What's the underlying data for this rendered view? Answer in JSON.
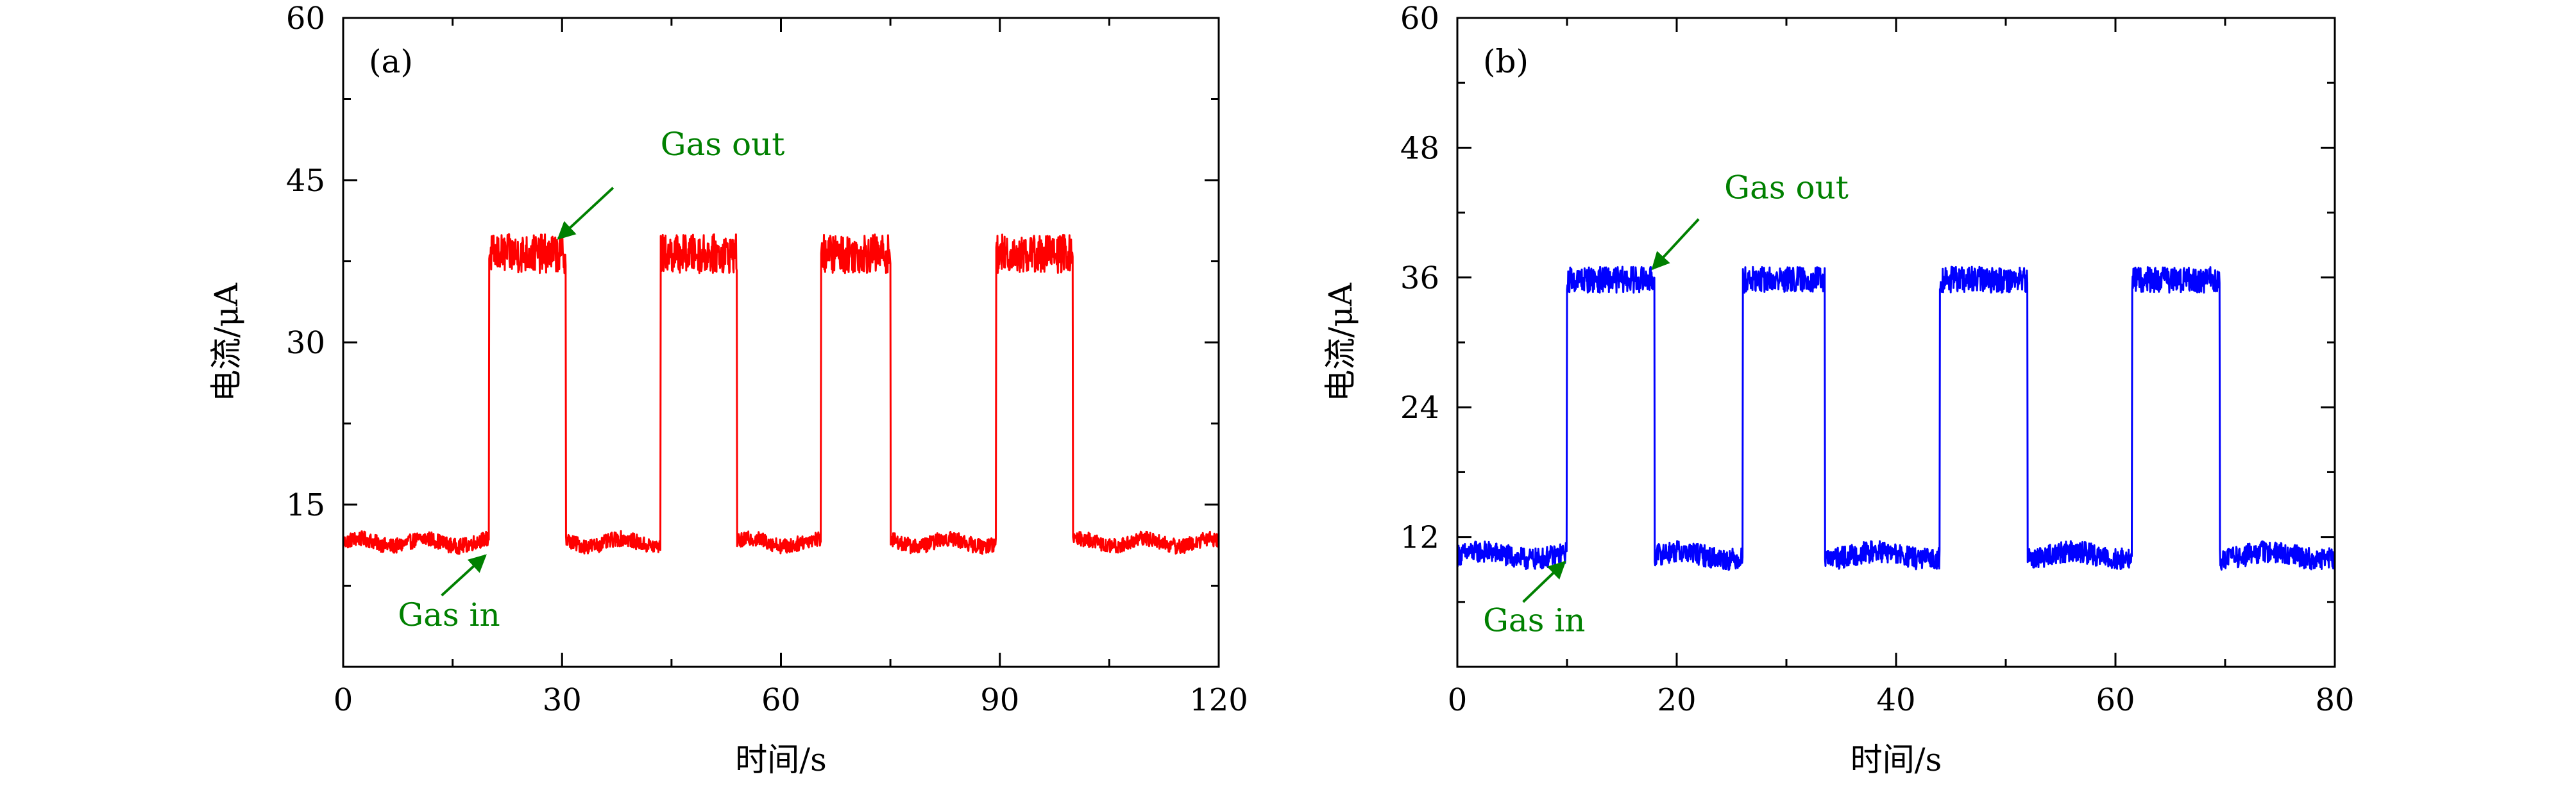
{
  "chart_data": [
    {
      "type": "line",
      "panel_label": "(a)",
      "xlabel": "时间/s",
      "ylabel": "电流/μA",
      "xlim": [
        0,
        120
      ],
      "ylim": [
        0,
        60
      ],
      "xticks": [
        0,
        30,
        60,
        90,
        120
      ],
      "xtick_labels": [
        "0",
        "30",
        "60",
        "90",
        "120"
      ],
      "yticks": [
        15,
        30,
        45,
        60
      ],
      "ytick_labels": [
        "15",
        "30",
        "45",
        "60"
      ],
      "grid": false,
      "series": [
        {
          "color": "#ff0000",
          "baseline": 11.5,
          "baseline_noise": 1.4,
          "high": 38.2,
          "high_noise": 3.6,
          "pulses": [
            [
              20,
              30.5
            ],
            [
              43.5,
              54
            ],
            [
              65.5,
              75
            ],
            [
              89.5,
              100
            ]
          ],
          "x_end": 120
        }
      ],
      "annotations": [
        {
          "text": "Gas out",
          "text_x": 52,
          "text_y": 47.3,
          "arrow_from": [
            37,
            44.3
          ],
          "arrow_to": [
            29.5,
            39.6
          ],
          "color": "#008000"
        },
        {
          "text": "Gas in",
          "text_x": 14.5,
          "text_y": 3.8,
          "arrow_from": [
            13.5,
            6.6
          ],
          "arrow_to": [
            19.5,
            10.3
          ],
          "color": "#008000"
        }
      ]
    },
    {
      "type": "line",
      "panel_label": "(b)",
      "xlabel": "时间/s",
      "ylabel": "电流/μA",
      "xlim": [
        0,
        80
      ],
      "ylim": [
        0,
        60
      ],
      "xticks": [
        0,
        20,
        40,
        60,
        80
      ],
      "xtick_labels": [
        "0",
        "20",
        "40",
        "60",
        "80"
      ],
      "yticks": [
        12,
        24,
        36,
        48,
        60
      ],
      "ytick_labels": [
        "12",
        "24",
        "36",
        "48",
        "60"
      ],
      "grid": false,
      "series": [
        {
          "color": "#0000ff",
          "baseline": 10.3,
          "baseline_noise": 2.0,
          "high": 35.8,
          "high_noise": 2.4,
          "pulses": [
            [
              10,
              18
            ],
            [
              26,
              33.5
            ],
            [
              44,
              52
            ],
            [
              61.5,
              69.5
            ]
          ],
          "x_end": 80
        }
      ],
      "annotations": [
        {
          "text": "Gas out",
          "text_x": 30,
          "text_y": 43.3,
          "arrow_from": [
            22,
            41.4
          ],
          "arrow_to": [
            17.8,
            36.8
          ],
          "color": "#008000"
        },
        {
          "text": "Gas in",
          "text_x": 7,
          "text_y": 3.3,
          "arrow_from": [
            6,
            6.0
          ],
          "arrow_to": [
            9.8,
            9.7
          ],
          "color": "#008000"
        }
      ]
    }
  ]
}
